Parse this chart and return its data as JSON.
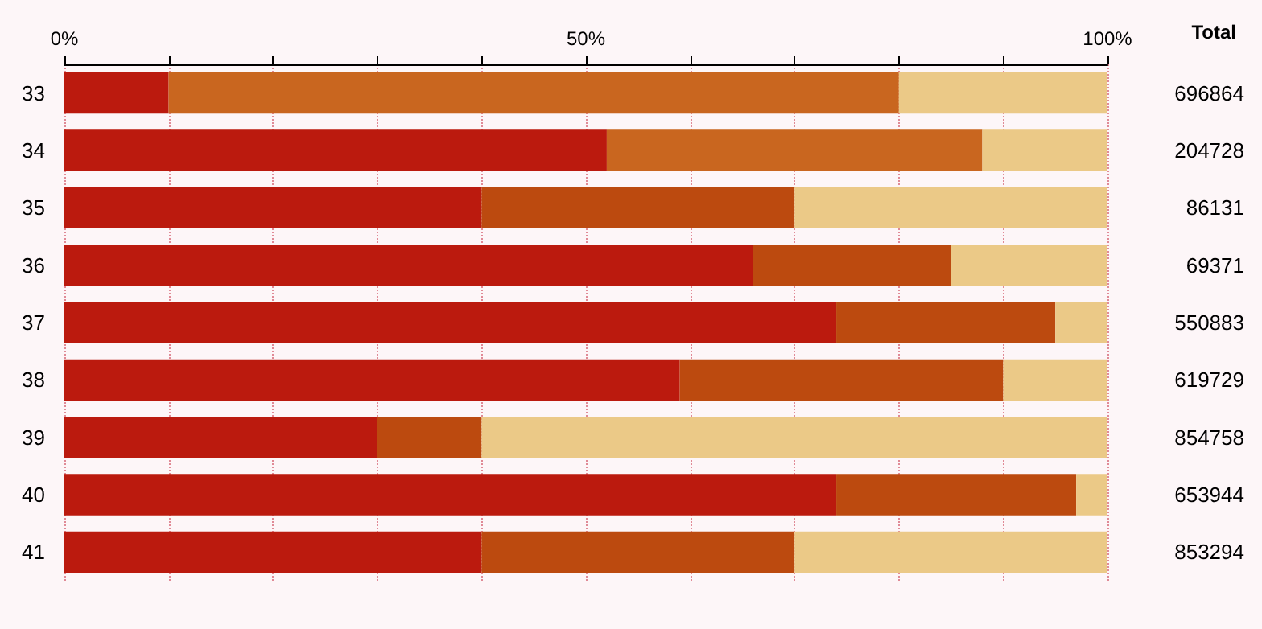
{
  "chart_data": {
    "type": "bar",
    "orientation": "horizontal",
    "stacked": true,
    "categories": [
      "33",
      "34",
      "35",
      "36",
      "37",
      "38",
      "39",
      "40",
      "41"
    ],
    "series": [
      {
        "color": "#bb1a0e",
        "values": [
          10,
          52,
          40,
          66,
          74,
          59,
          30,
          74,
          40
        ]
      },
      {
        "color": "#bc4a0f",
        "colors": [
          "#c9661f",
          "#c9661f",
          "#bc4a0f",
          "#bc4a0f",
          "#bc4a0f",
          "#bc4a0f",
          "#bc4a0f",
          "#bc4a0f",
          "#bc4a0f"
        ],
        "values": [
          70,
          36,
          30,
          19,
          21,
          31,
          10,
          23,
          30
        ]
      },
      {
        "color": "#ebc987",
        "values": [
          20,
          12,
          30,
          15,
          5,
          10,
          60,
          3,
          30
        ]
      }
    ],
    "xlim": [
      0,
      100
    ],
    "xticks": [
      {
        "value": 0,
        "label": "0%"
      },
      {
        "value": 10,
        "label": null
      },
      {
        "value": 20,
        "label": null
      },
      {
        "value": 30,
        "label": null
      },
      {
        "value": 40,
        "label": null
      },
      {
        "value": 50,
        "label": "50%"
      },
      {
        "value": 60,
        "label": null
      },
      {
        "value": 70,
        "label": null
      },
      {
        "value": 80,
        "label": null
      },
      {
        "value": 90,
        "label": null
      },
      {
        "value": 100,
        "label": "100%"
      }
    ],
    "grid": "x",
    "annotations": [
      "Total",
      "696864",
      "204728",
      "86131",
      "69371",
      "550883",
      "619729",
      "854758",
      "653944",
      "853294"
    ]
  }
}
